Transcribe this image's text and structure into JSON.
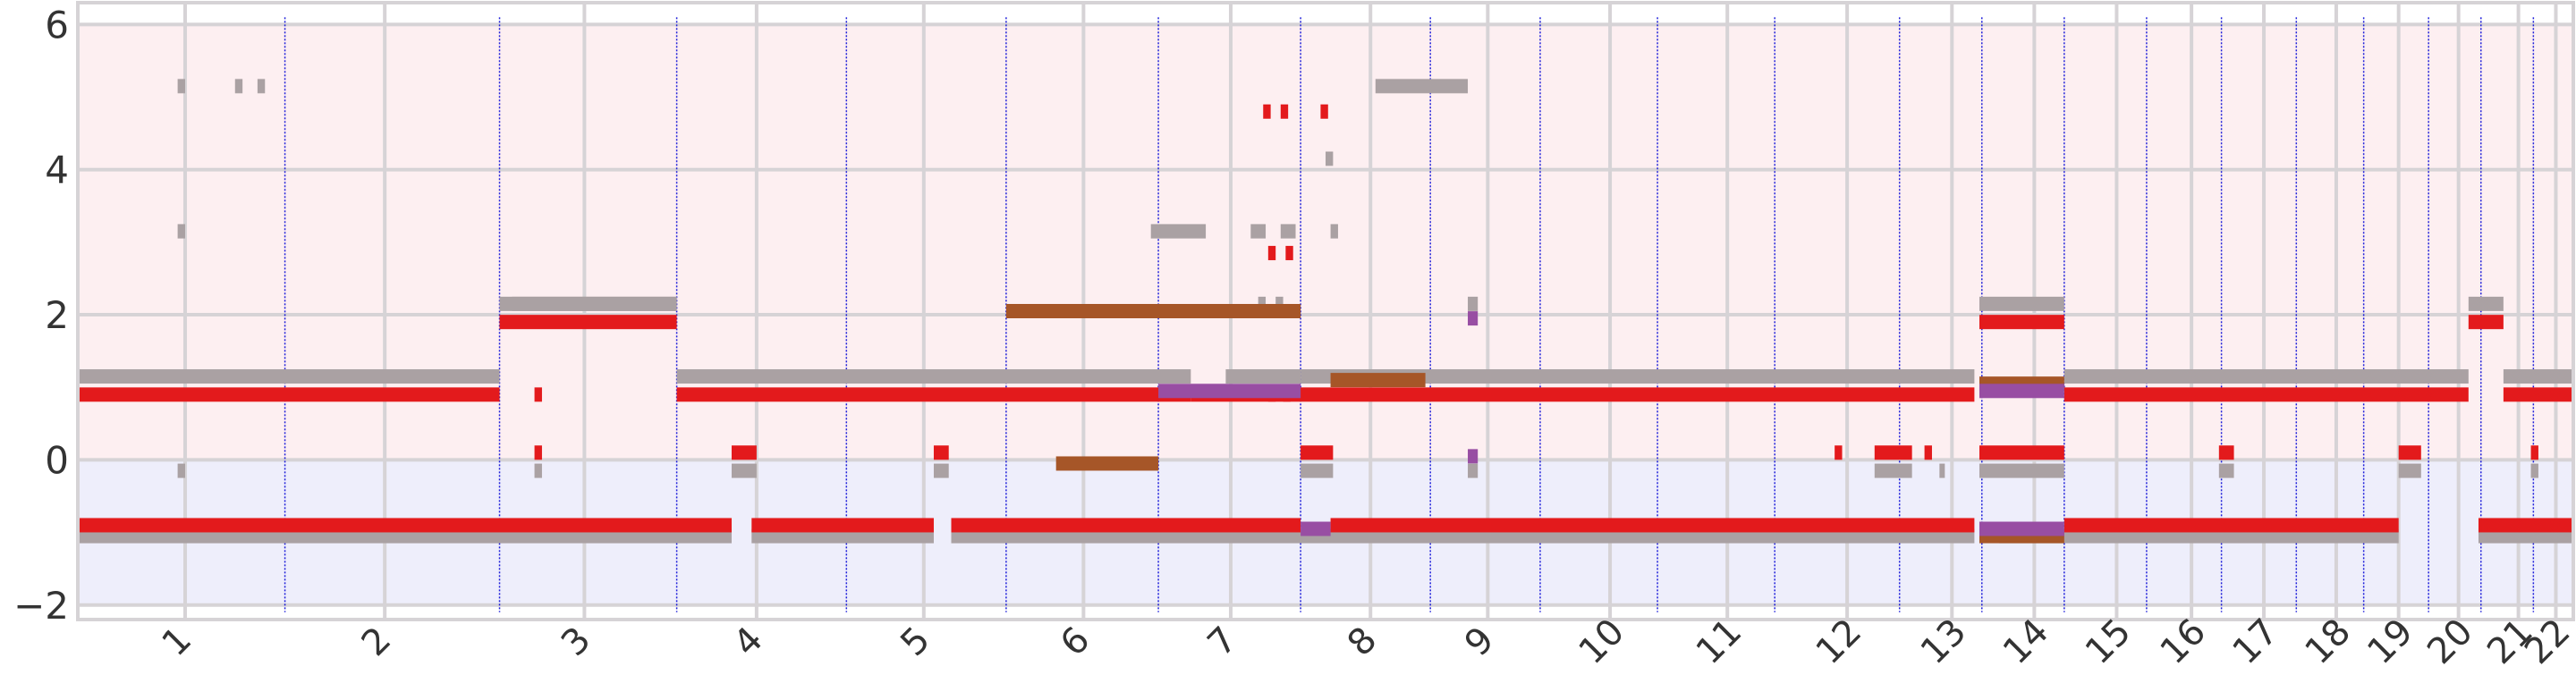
{
  "chart_data": {
    "type": "segment-timeline",
    "title": "",
    "xlabel": "",
    "ylabel": "",
    "ylim": [
      -2.2,
      6.3
    ],
    "y_ticks": [
      -2,
      0,
      2,
      4,
      6
    ],
    "x_range": [
      0,
      1
    ],
    "x_ticks": [
      {
        "label": "1",
        "pos": 0.043
      },
      {
        "label": "2",
        "pos": 0.123
      },
      {
        "label": "3",
        "pos": 0.203
      },
      {
        "label": "4",
        "pos": 0.272
      },
      {
        "label": "5",
        "pos": 0.339
      },
      {
        "label": "6",
        "pos": 0.403
      },
      {
        "label": "7",
        "pos": 0.462
      },
      {
        "label": "8",
        "pos": 0.518
      },
      {
        "label": "9",
        "pos": 0.565
      },
      {
        "label": "10",
        "pos": 0.614
      },
      {
        "label": "11",
        "pos": 0.661
      },
      {
        "label": "12",
        "pos": 0.709
      },
      {
        "label": "13",
        "pos": 0.751
      },
      {
        "label": "14",
        "pos": 0.784
      },
      {
        "label": "15",
        "pos": 0.817
      },
      {
        "label": "16",
        "pos": 0.847
      },
      {
        "label": "17",
        "pos": 0.876
      },
      {
        "label": "18",
        "pos": 0.905
      },
      {
        "label": "19",
        "pos": 0.93
      },
      {
        "label": "20",
        "pos": 0.954
      },
      {
        "label": "21",
        "pos": 0.978
      },
      {
        "label": "22",
        "pos": 0.993
      }
    ],
    "chromosome_boundaries": [
      0.083,
      0.169,
      0.24,
      0.308,
      0.372,
      0.433,
      0.49,
      0.542,
      0.586,
      0.633,
      0.68,
      0.73,
      0.763,
      0.796,
      0.829,
      0.859,
      0.889,
      0.916,
      0.942,
      0.963,
      0.984
    ],
    "regions": [
      {
        "name": "gain",
        "y_from": 0,
        "y_to": 6,
        "color": "#fdeff1"
      },
      {
        "name": "loss",
        "y_from": -2,
        "y_to": 0,
        "color": "#eeeefb"
      }
    ],
    "colors": {
      "red": "#e31a1c",
      "gray": "#aaa1a3",
      "brown": "#a65628",
      "purple": "#984ea3",
      "boundary": "#1a1ad9",
      "grid": "#d6d3d6"
    },
    "series": [
      {
        "color": "gray",
        "segments": [
          [
            0.0,
            0.169,
            1.15
          ],
          [
            0.174,
            0.24,
            2.15
          ],
          [
            0.24,
            0.446,
            1.15
          ],
          [
            0.46,
            0.49,
            1.15
          ],
          [
            0.49,
            0.76,
            1.15
          ],
          [
            0.796,
            0.958,
            1.15
          ],
          [
            0.972,
            1.0,
            1.15
          ],
          [
            0.0,
            0.262,
            -1.05
          ],
          [
            0.27,
            0.343,
            -1.05
          ],
          [
            0.35,
            0.76,
            -1.05
          ],
          [
            0.77,
            0.93,
            -1.05
          ],
          [
            0.962,
            1.0,
            -1.05
          ],
          [
            0.169,
            0.24,
            2.15
          ],
          [
            0.762,
            0.796,
            2.15
          ],
          [
            0.958,
            0.972,
            2.15
          ],
          [
            0.04,
            0.043,
            5.15
          ],
          [
            0.063,
            0.066,
            5.15
          ],
          [
            0.072,
            0.075,
            5.15
          ],
          [
            0.52,
            0.557,
            5.15
          ],
          [
            0.04,
            0.043,
            3.15
          ],
          [
            0.43,
            0.452,
            3.15
          ],
          [
            0.47,
            0.476,
            3.15
          ],
          [
            0.482,
            0.488,
            3.15
          ],
          [
            0.502,
            0.505,
            3.15
          ],
          [
            0.5,
            0.503,
            4.15
          ],
          [
            0.473,
            0.476,
            2.15
          ],
          [
            0.48,
            0.483,
            2.15
          ],
          [
            0.557,
            0.561,
            2.15
          ],
          [
            0.262,
            0.272,
            -0.15
          ],
          [
            0.343,
            0.349,
            -0.15
          ],
          [
            0.49,
            0.503,
            -0.15
          ],
          [
            0.72,
            0.735,
            -0.15
          ],
          [
            0.762,
            0.796,
            -0.15
          ],
          [
            0.858,
            0.864,
            -0.15
          ],
          [
            0.93,
            0.939,
            -0.15
          ],
          [
            0.04,
            0.043,
            -0.15
          ],
          [
            0.183,
            0.186,
            -0.15
          ],
          [
            0.557,
            0.561,
            -0.15
          ],
          [
            0.746,
            0.748,
            -0.15
          ],
          [
            0.983,
            0.986,
            -0.15
          ]
        ]
      },
      {
        "color": "red",
        "segments": [
          [
            0.0,
            0.169,
            0.9
          ],
          [
            0.24,
            0.446,
            0.9
          ],
          [
            0.446,
            0.76,
            0.9
          ],
          [
            0.796,
            0.958,
            0.9
          ],
          [
            0.972,
            1.0,
            0.9
          ],
          [
            0.0,
            0.262,
            -0.9
          ],
          [
            0.27,
            0.343,
            -0.9
          ],
          [
            0.35,
            0.49,
            -0.9
          ],
          [
            0.502,
            0.76,
            -0.9
          ],
          [
            0.796,
            0.93,
            -0.9
          ],
          [
            0.962,
            1.0,
            -0.9
          ],
          [
            0.169,
            0.24,
            1.9
          ],
          [
            0.762,
            0.796,
            1.9
          ],
          [
            0.958,
            0.972,
            1.9
          ],
          [
            0.262,
            0.272,
            0.1
          ],
          [
            0.343,
            0.349,
            0.1
          ],
          [
            0.49,
            0.503,
            0.1
          ],
          [
            0.72,
            0.735,
            0.1
          ],
          [
            0.762,
            0.796,
            0.1
          ],
          [
            0.93,
            0.939,
            0.1
          ],
          [
            0.858,
            0.864,
            0.1
          ],
          [
            0.74,
            0.743,
            0.1
          ],
          [
            0.704,
            0.707,
            0.1
          ],
          [
            0.983,
            0.986,
            0.1
          ],
          [
            0.183,
            0.186,
            0.1
          ],
          [
            0.183,
            0.186,
            0.9
          ],
          [
            0.477,
            0.48,
            0.9
          ],
          [
            0.483,
            0.486,
            0.9
          ],
          [
            0.475,
            0.478,
            4.8
          ],
          [
            0.482,
            0.485,
            4.8
          ],
          [
            0.498,
            0.501,
            4.8
          ],
          [
            0.477,
            0.48,
            2.85
          ],
          [
            0.484,
            0.487,
            2.85
          ]
        ]
      },
      {
        "color": "brown",
        "segments": [
          [
            0.372,
            0.49,
            2.05
          ],
          [
            0.392,
            0.433,
            -0.05
          ],
          [
            0.502,
            0.54,
            1.1
          ],
          [
            0.762,
            0.796,
            1.05
          ],
          [
            0.762,
            0.796,
            -1.05
          ]
        ]
      },
      {
        "color": "purple",
        "segments": [
          [
            0.433,
            0.49,
            0.95
          ],
          [
            0.49,
            0.502,
            -0.95
          ],
          [
            0.762,
            0.796,
            0.95
          ],
          [
            0.762,
            0.796,
            -0.95
          ],
          [
            0.557,
            0.561,
            1.95
          ],
          [
            0.557,
            0.561,
            0.05
          ]
        ]
      }
    ]
  }
}
